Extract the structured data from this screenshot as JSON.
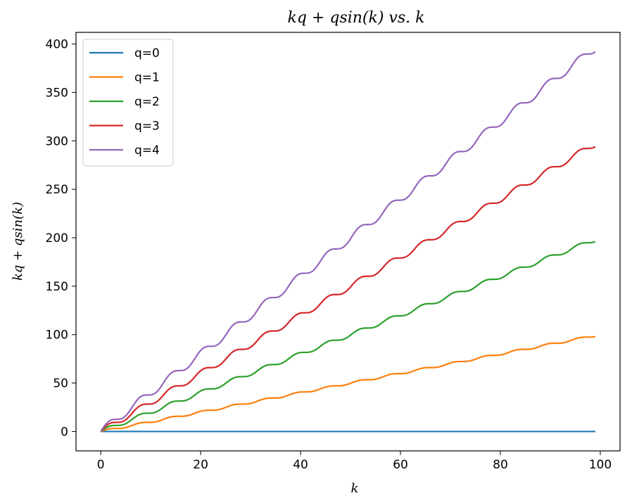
{
  "chart_data": {
    "type": "line",
    "title": "kq + qsin(k) vs. k",
    "xlabel": "k",
    "ylabel": "kq + qsin(k)",
    "xlim": [
      -4.95,
      103.95
    ],
    "ylim": [
      -20,
      412
    ],
    "x_ticks": [
      0,
      20,
      40,
      60,
      80,
      100
    ],
    "y_ticks": [
      0,
      50,
      100,
      150,
      200,
      250,
      300,
      350,
      400
    ],
    "grid": false,
    "legend_position": "top-left",
    "formula": "y = k*q + q*sin(k)",
    "x_range": [
      0,
      99
    ],
    "series": [
      {
        "name": "q=0",
        "q": 0,
        "color": "#1f77b4"
      },
      {
        "name": "q=1",
        "q": 1,
        "color": "#ff7f0e"
      },
      {
        "name": "q=2",
        "q": 2,
        "color": "#2ca02c"
      },
      {
        "name": "q=3",
        "q": 3,
        "color": "#d62728"
      },
      {
        "name": "q=4",
        "q": 4,
        "color": "#9467bd"
      }
    ]
  }
}
